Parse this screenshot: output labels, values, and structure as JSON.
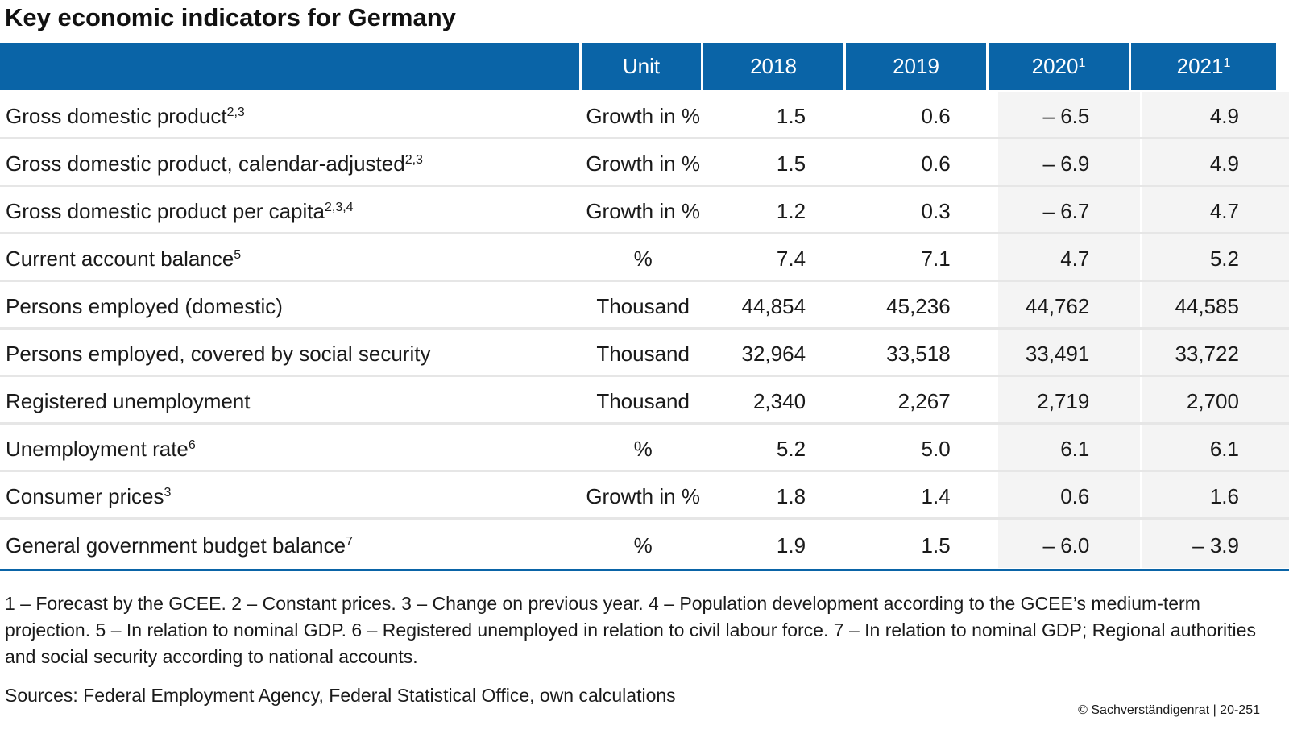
{
  "title": "Key economic indicators for Germany",
  "header": {
    "unit": "Unit",
    "years": [
      {
        "label": "2018",
        "sup": ""
      },
      {
        "label": "2019",
        "sup": ""
      },
      {
        "label": "2020",
        "sup": "1"
      },
      {
        "label": "2021",
        "sup": "1"
      }
    ]
  },
  "chart_data": {
    "type": "table",
    "title": "Key economic indicators for Germany",
    "columns": [
      "Unit",
      "2018",
      "2019",
      "2020",
      "2021"
    ],
    "rows": [
      {
        "indicator": "Gross domestic product",
        "sup": "2,3",
        "unit": "Growth in %",
        "values": [
          "1.5",
          "0.6",
          "– 6.5",
          "4.9"
        ]
      },
      {
        "indicator": "Gross domestic product, calendar-adjusted",
        "sup": "2,3",
        "unit": "Growth in %",
        "values": [
          "1.5",
          "0.6",
          "– 6.9",
          "4.9"
        ]
      },
      {
        "indicator": "Gross domestic product per capita",
        "sup": "2,3,4",
        "unit": "Growth in %",
        "values": [
          "1.2",
          "0.3",
          "– 6.7",
          "4.7"
        ]
      },
      {
        "indicator": "Current account balance",
        "sup": "5",
        "unit": "%",
        "values": [
          "7.4",
          "7.1",
          "4.7",
          "5.2"
        ]
      },
      {
        "indicator": "Persons employed (domestic)",
        "sup": "",
        "unit": "Thousand",
        "values": [
          "44,854",
          "45,236",
          "44,762",
          "44,585"
        ]
      },
      {
        "indicator": "Persons employed, covered by social security",
        "sup": "",
        "unit": "Thousand",
        "values": [
          "32,964",
          "33,518",
          "33,491",
          "33,722"
        ]
      },
      {
        "indicator": "Registered unemployment",
        "sup": "",
        "unit": "Thousand",
        "values": [
          "2,340",
          "2,267",
          "2,719",
          "2,700"
        ]
      },
      {
        "indicator": "Unemployment rate",
        "sup": "6",
        "unit": "%",
        "values": [
          "5.2",
          "5.0",
          "6.1",
          "6.1"
        ]
      },
      {
        "indicator": "Consumer prices",
        "sup": "3",
        "unit": "Growth in %",
        "values": [
          "1.8",
          "1.4",
          "0.6",
          "1.6"
        ]
      },
      {
        "indicator": "General government budget balance",
        "sup": "7",
        "unit": "%",
        "values": [
          "1.9",
          "1.5",
          "– 6.0",
          "– 3.9"
        ]
      }
    ]
  },
  "footnotes": "1 – Forecast by the GCEE.  2 – Constant prices.  3 – Change on previous year.  4 – Population development according to the GCEE’s medium-term projection.  5 – In relation to nominal GDP.  6 – Registered unemployed in relation to civil labour force.  7 – In relation to nominal GDP; Regional authorities and social security according to national accounts.",
  "sources": "Sources: Federal Employment Agency, Federal Statistical Office, own calculations",
  "copyright": "© Sachverständigenrat | 20-251",
  "colors": {
    "header_bg": "#0a64a7",
    "forecast_bg": "#f4f4f4",
    "row_rule": "#e6e6e6"
  }
}
